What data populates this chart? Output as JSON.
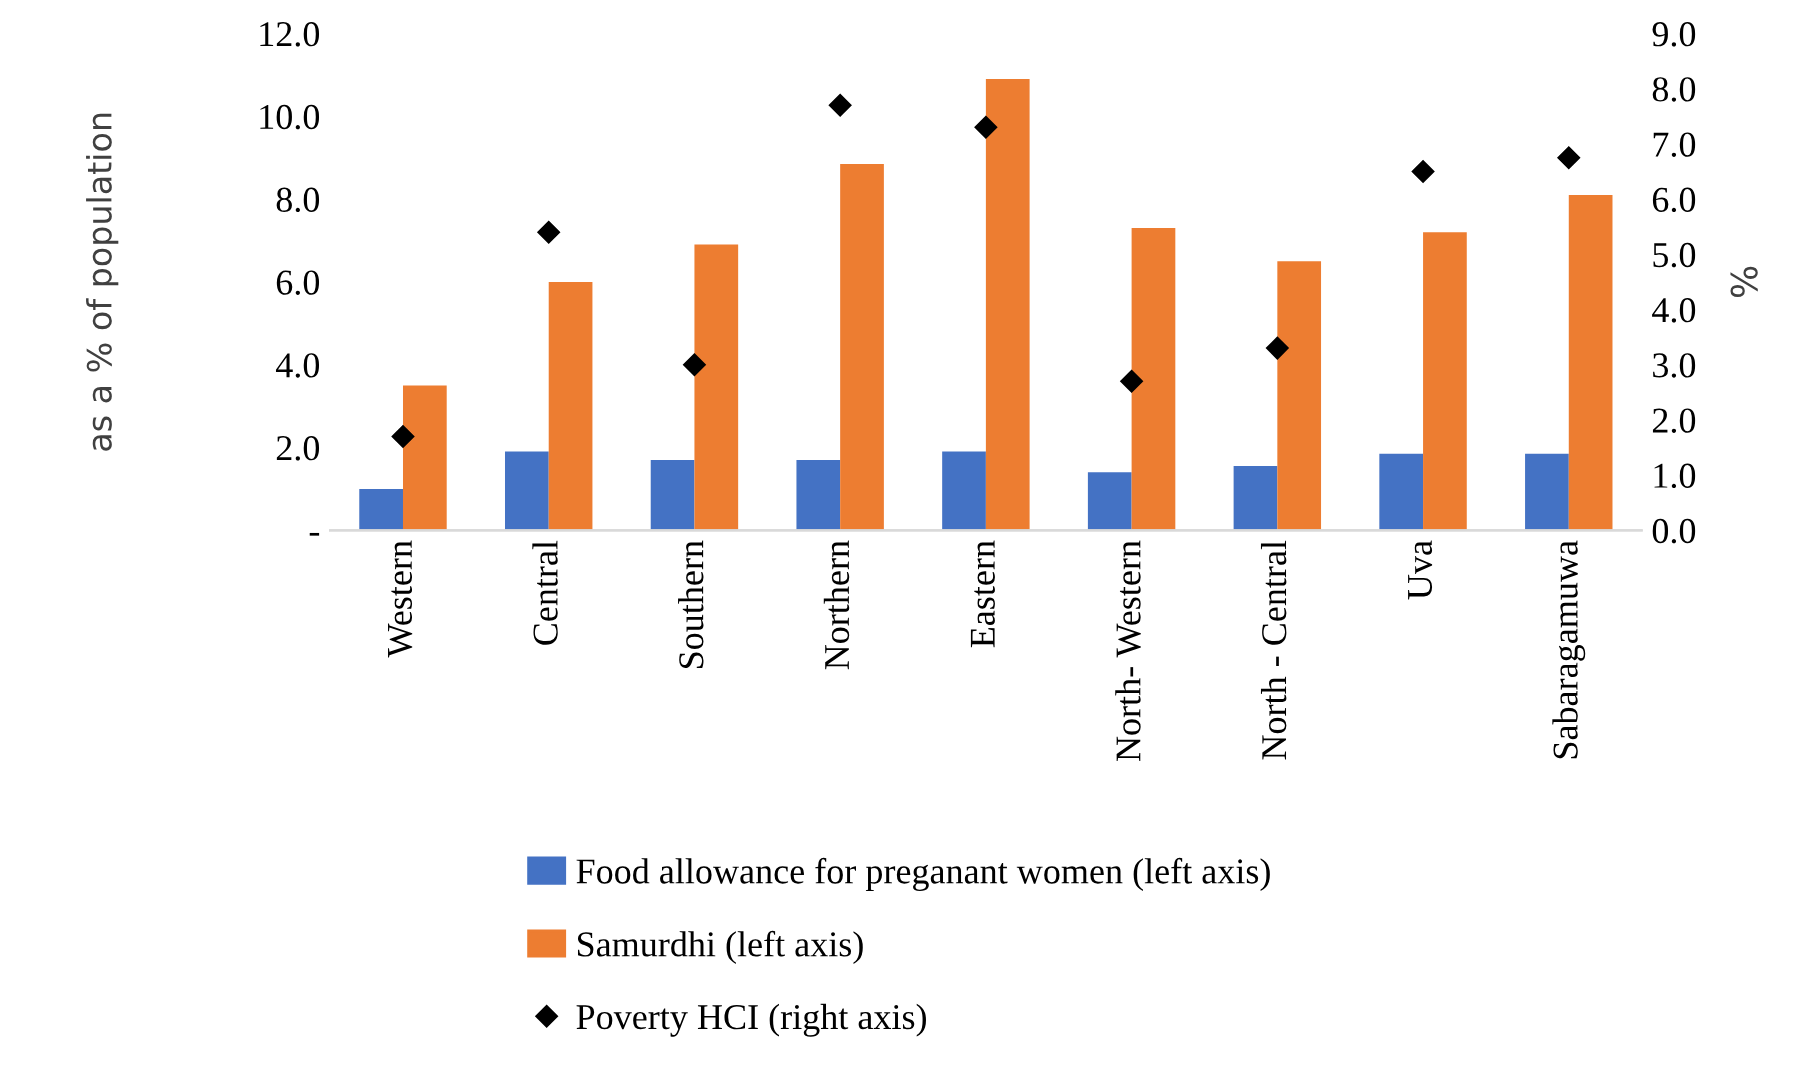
{
  "chart_data": {
    "type": "bar",
    "ylabel": "as a % of population",
    "y2label": "%",
    "categories": [
      "Western",
      "Central",
      "Southern",
      "Northern",
      "Eastern",
      "North- Western",
      "North - Central",
      "Uva",
      "Sabaragamuwa"
    ],
    "series": [
      {
        "name": "Food allowance for preganant women (left axis)",
        "color": "#4472c4",
        "values": [
          1.0,
          1.9,
          1.7,
          1.7,
          1.9,
          1.4,
          1.55,
          1.85,
          1.85
        ]
      },
      {
        "name": "Samurdhi (left axis)",
        "color": "#ed7d31",
        "values": [
          3.5,
          6.0,
          6.9,
          8.85,
          10.9,
          7.3,
          6.5,
          7.2,
          8.1
        ]
      },
      {
        "name": "Poverty HCI (right axis)",
        "type": "scatter",
        "axis": "y2",
        "marker": "diamond",
        "color": "#000000",
        "values": [
          1.7,
          5.4,
          3.0,
          7.7,
          7.3,
          2.7,
          3.3,
          6.5,
          6.75
        ]
      }
    ],
    "ylim": [
      0,
      12
    ],
    "yticks": [
      {
        "value": 0,
        "label": "-"
      },
      {
        "value": 2,
        "label": "2.0"
      },
      {
        "value": 4,
        "label": "4.0"
      },
      {
        "value": 6,
        "label": "6.0"
      },
      {
        "value": 8,
        "label": "8.0"
      },
      {
        "value": 10,
        "label": "10.0"
      },
      {
        "value": 12,
        "label": "12.0"
      }
    ],
    "y2lim": [
      0,
      9
    ],
    "y2ticks": [
      {
        "value": 0,
        "label": "0.0"
      },
      {
        "value": 1,
        "label": "1.0"
      },
      {
        "value": 2,
        "label": "2.0"
      },
      {
        "value": 3,
        "label": "3.0"
      },
      {
        "value": 4,
        "label": "4.0"
      },
      {
        "value": 5,
        "label": "5.0"
      },
      {
        "value": 6,
        "label": "6.0"
      },
      {
        "value": 7,
        "label": "7.0"
      },
      {
        "value": 8,
        "label": "8.0"
      },
      {
        "value": 9,
        "label": "9.0"
      }
    ],
    "grid": false,
    "legend": "bottom"
  }
}
